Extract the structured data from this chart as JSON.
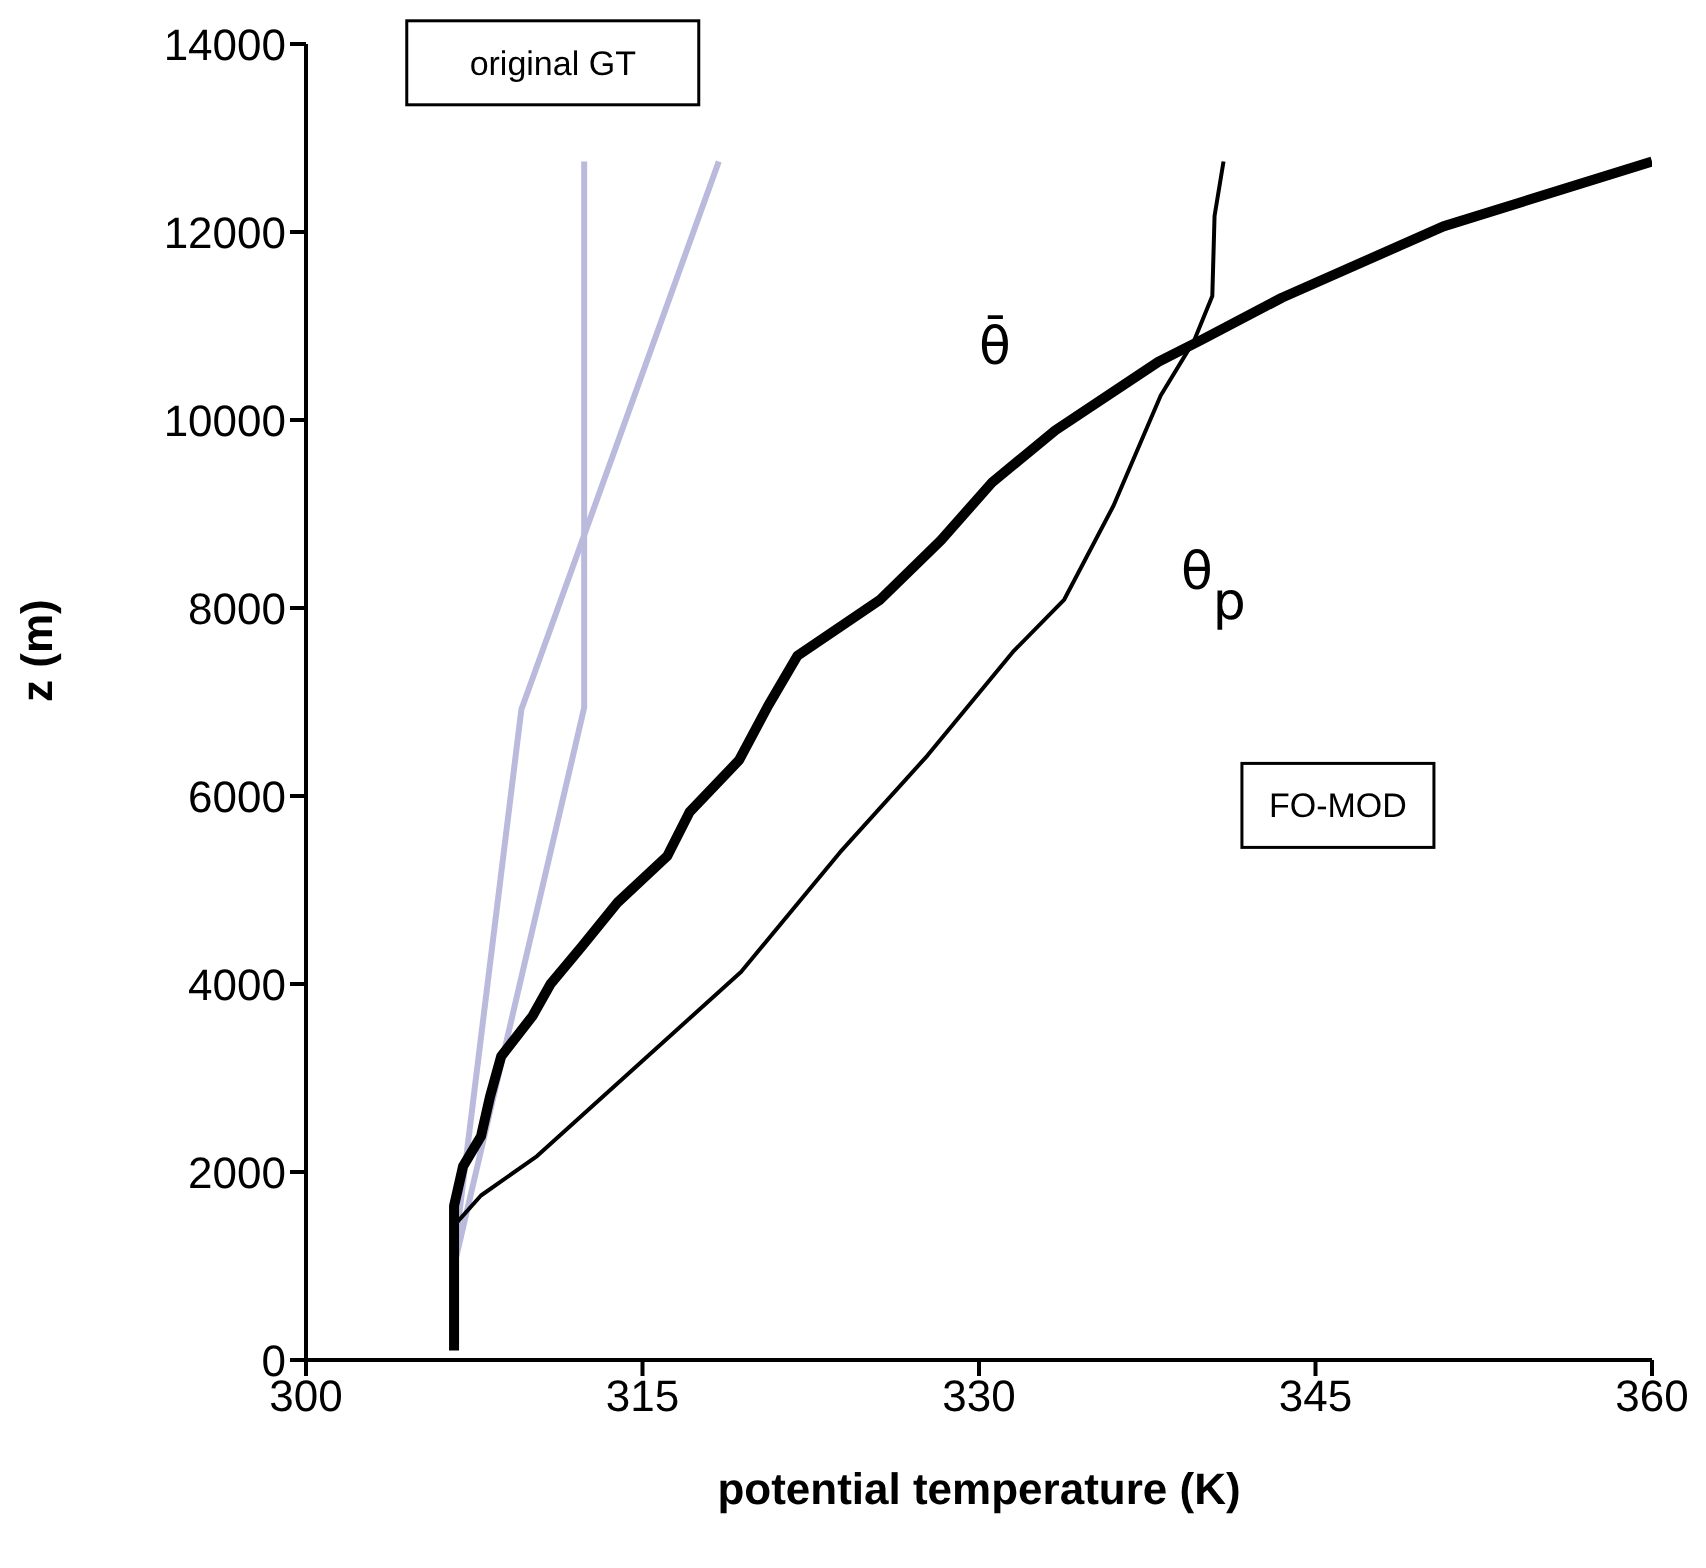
{
  "chart_data": {
    "type": "line",
    "xlabel": "potential temperature (K)",
    "ylabel": "z (m)",
    "xlim": [
      300,
      360
    ],
    "xticks": [
      300,
      315,
      330,
      345,
      360
    ],
    "ylim": [
      0,
      14000
    ],
    "yticks": [
      0,
      2000,
      4000,
      6000,
      8000,
      10000,
      12000,
      14000
    ],
    "grid": false,
    "legend": false,
    "marker": "none",
    "line_style": "solid",
    "annotations": [
      "original GT",
      "FO-MOD"
    ],
    "series": [
      {
        "color": "#babadc",
        "x": [
          312.4,
          312.4,
          312.4,
          306.7
        ],
        "values": [
          12750,
          6940,
          6940,
          1100
        ]
      },
      {
        "color": "#babadc",
        "x": [
          318.4,
          309.6,
          306.7
        ],
        "values": [
          12750,
          6920,
          1300
        ]
      },
      {
        "name": "θ̄",
        "color": "#000000",
        "x": [
          306.6,
          306.6,
          307.0,
          307.8,
          308.2,
          308.7,
          310.1,
          310.9,
          312.3,
          313.9,
          316.1,
          317.1,
          319.3,
          320.6,
          321.9,
          325.6,
          328.3,
          330.6,
          333.4,
          338.0,
          339.9,
          343.5,
          350.7,
          360.0
        ],
        "values": [
          100,
          1640,
          2060,
          2380,
          2800,
          3230,
          3660,
          4000,
          4400,
          4870,
          5360,
          5830,
          6380,
          6960,
          7490,
          8090,
          8720,
          9340,
          9890,
          10620,
          10850,
          11300,
          12060,
          12750
        ]
      },
      {
        "name": "θ$_{p}$",
        "color": "#000000",
        "x": [
          306.6,
          307.8,
          310.3,
          319.4,
          323.8,
          327.7,
          331.5,
          333.8,
          336.0,
          338.1,
          339.6,
          340.4,
          340.5,
          340.9
        ],
        "values": [
          1430,
          1750,
          2170,
          4130,
          5400,
          6430,
          7530,
          8090,
          9090,
          10260,
          10850,
          11320,
          12170,
          12750
        ]
      }
    ]
  }
}
